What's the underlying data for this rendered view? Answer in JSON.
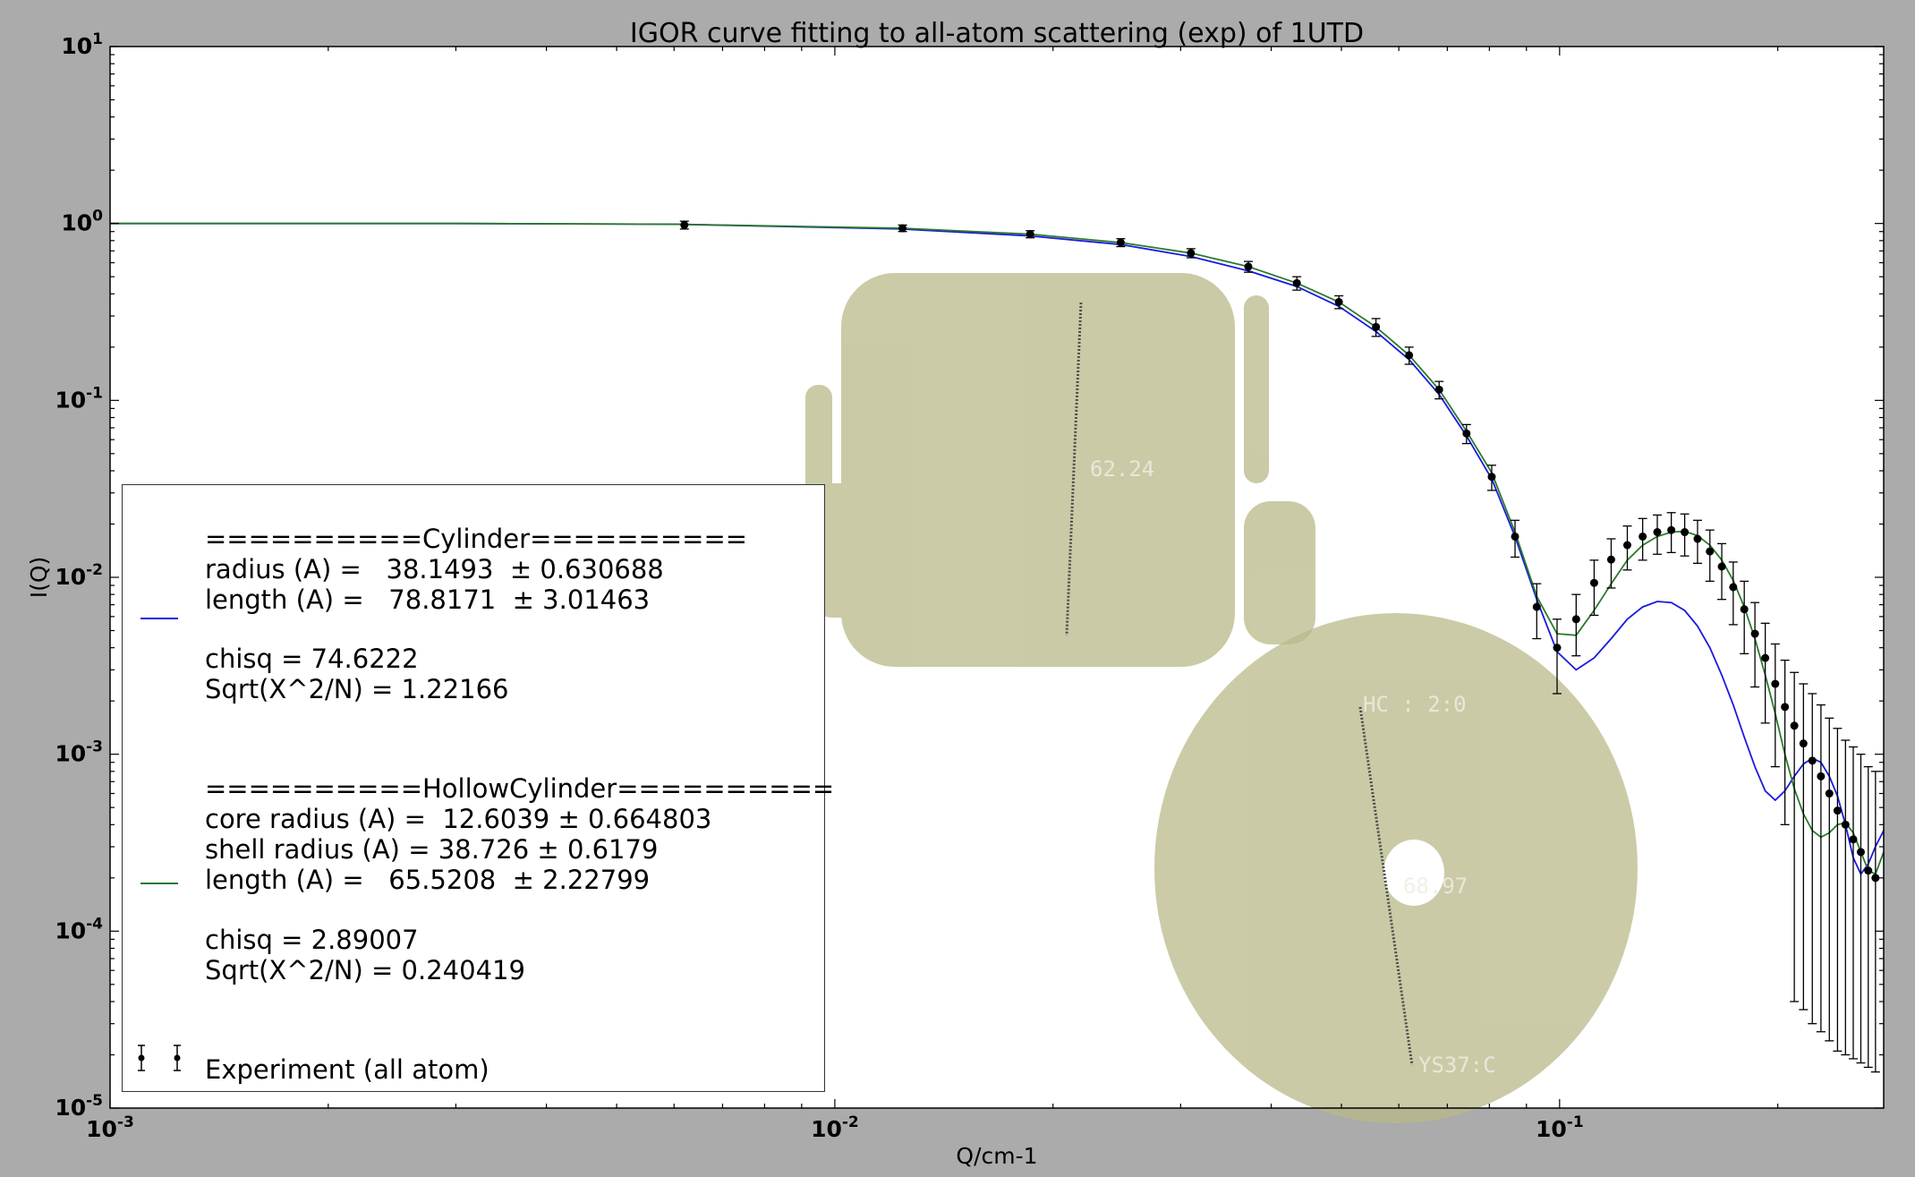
{
  "chart_data": {
    "type": "scatter",
    "title": "IGOR curve fitting to all-atom scattering (exp) of 1UTD",
    "xlabel": "Q/cm-1",
    "ylabel": "I(Q)",
    "xscale": "log",
    "yscale": "log",
    "xlim": [
      0.001,
      0.28
    ],
    "ylim": [
      1e-05,
      10
    ],
    "x_ticks": [
      {
        "base": "10",
        "exp": "-3"
      },
      {
        "base": "10",
        "exp": "-2"
      },
      {
        "base": "10",
        "exp": "-1"
      }
    ],
    "y_ticks": [
      {
        "base": "10",
        "exp": "1"
      },
      {
        "base": "10",
        "exp": "0"
      },
      {
        "base": "10",
        "exp": "-1"
      },
      {
        "base": "10",
        "exp": "-2"
      },
      {
        "base": "10",
        "exp": "-3"
      },
      {
        "base": "10",
        "exp": "-4"
      },
      {
        "base": "10",
        "exp": "-5"
      }
    ],
    "grid": false,
    "series": [
      {
        "name": "Experiment (all atom)",
        "kind": "errorbar",
        "color": "#000000",
        "x": [
          0.0062,
          0.0124,
          0.0186,
          0.0248,
          0.031,
          0.0372,
          0.0434,
          0.0496,
          0.0558,
          0.062,
          0.0682,
          0.0744,
          0.0806,
          0.0868,
          0.093,
          0.0992,
          0.1054,
          0.1116,
          0.1178,
          0.124,
          0.1302,
          0.1364,
          0.1426,
          0.1488,
          0.155,
          0.1612,
          0.1674,
          0.1736,
          0.1798,
          0.186,
          0.1922,
          0.1984,
          0.2046,
          0.2108,
          0.217,
          0.2232,
          0.2294,
          0.2356,
          0.2418,
          0.248,
          0.2542,
          0.2604,
          0.2666,
          0.2728
        ],
        "y": [
          0.98,
          0.94,
          0.87,
          0.78,
          0.68,
          0.57,
          0.46,
          0.36,
          0.26,
          0.18,
          0.115,
          0.065,
          0.037,
          0.017,
          0.0068,
          0.004,
          0.0058,
          0.0093,
          0.0126,
          0.0152,
          0.017,
          0.018,
          0.0185,
          0.018,
          0.0165,
          0.014,
          0.0115,
          0.0088,
          0.0066,
          0.0048,
          0.0035,
          0.0025,
          0.00185,
          0.00145,
          0.00115,
          0.00092,
          0.00075,
          0.0006,
          0.00048,
          0.0004,
          0.00033,
          0.00028,
          0.00022,
          0.0002
        ],
        "yerr_upper": [
          1.03,
          0.98,
          0.91,
          0.82,
          0.72,
          0.61,
          0.5,
          0.39,
          0.29,
          0.2,
          0.128,
          0.073,
          0.043,
          0.021,
          0.0092,
          0.0058,
          0.008,
          0.0125,
          0.0165,
          0.0195,
          0.0215,
          0.0225,
          0.0232,
          0.0228,
          0.021,
          0.0185,
          0.0155,
          0.0122,
          0.0095,
          0.0072,
          0.0055,
          0.0042,
          0.0034,
          0.0029,
          0.0025,
          0.0022,
          0.0019,
          0.0016,
          0.0014,
          0.0012,
          0.0011,
          0.001,
          0.00085,
          0.0008
        ],
        "yerr_lower": [
          0.93,
          0.9,
          0.83,
          0.74,
          0.64,
          0.53,
          0.42,
          0.33,
          0.23,
          0.16,
          0.102,
          0.057,
          0.031,
          0.013,
          0.0045,
          0.0022,
          0.0036,
          0.0061,
          0.0087,
          0.011,
          0.0125,
          0.0135,
          0.0138,
          0.0132,
          0.012,
          0.0095,
          0.0075,
          0.0054,
          0.0037,
          0.0024,
          0.0015,
          0.00085,
          0.0004,
          4e-05,
          3.6e-05,
          3e-05,
          2.7e-05,
          2.4e-05,
          2.1e-05,
          2e-05,
          1.9e-05,
          1.8e-05,
          1.7e-05,
          1.6e-05
        ]
      },
      {
        "name": "Cylinder",
        "kind": "line",
        "color": "#1a1adf",
        "x": [
          0.001,
          0.003,
          0.006,
          0.0124,
          0.0186,
          0.0248,
          0.031,
          0.0372,
          0.0434,
          0.0496,
          0.0558,
          0.062,
          0.0682,
          0.0744,
          0.0806,
          0.0868,
          0.093,
          0.0992,
          0.1054,
          0.1116,
          0.1178,
          0.124,
          0.1302,
          0.1364,
          0.1426,
          0.1488,
          0.155,
          0.1612,
          0.1674,
          0.1736,
          0.1798,
          0.186,
          0.1922,
          0.1984,
          0.2046,
          0.2108,
          0.217,
          0.2232,
          0.2294,
          0.2356,
          0.2418,
          0.248,
          0.2542,
          0.2604,
          0.2666,
          0.2728,
          0.28
        ],
        "y": [
          1.0,
          1.0,
          0.99,
          0.93,
          0.85,
          0.76,
          0.65,
          0.54,
          0.44,
          0.34,
          0.245,
          0.17,
          0.108,
          0.063,
          0.036,
          0.017,
          0.0075,
          0.0038,
          0.003,
          0.0035,
          0.0045,
          0.0058,
          0.0068,
          0.0073,
          0.0072,
          0.0065,
          0.0053,
          0.004,
          0.0028,
          0.0019,
          0.00125,
          0.00085,
          0.00062,
          0.00055,
          0.00062,
          0.00075,
          0.00088,
          0.00095,
          0.0009,
          0.00075,
          0.00058,
          0.0004,
          0.00026,
          0.00021,
          0.00024,
          0.0003,
          0.00037
        ]
      },
      {
        "name": "HollowCylinder",
        "kind": "line",
        "color": "#2b7a2b",
        "x": [
          0.001,
          0.003,
          0.006,
          0.0124,
          0.0186,
          0.0248,
          0.031,
          0.0372,
          0.0434,
          0.0496,
          0.0558,
          0.062,
          0.0682,
          0.0744,
          0.0806,
          0.0868,
          0.093,
          0.0992,
          0.1054,
          0.1116,
          0.1178,
          0.124,
          0.1302,
          0.1364,
          0.1426,
          0.1488,
          0.155,
          0.1612,
          0.1674,
          0.1736,
          0.1798,
          0.186,
          0.1922,
          0.1984,
          0.2046,
          0.2108,
          0.217,
          0.2232,
          0.2294,
          0.2356,
          0.2418,
          0.248,
          0.2542,
          0.2604,
          0.2666,
          0.2728,
          0.28
        ],
        "y": [
          1.0,
          1.0,
          0.99,
          0.94,
          0.87,
          0.78,
          0.68,
          0.57,
          0.46,
          0.36,
          0.26,
          0.18,
          0.115,
          0.067,
          0.039,
          0.018,
          0.0078,
          0.0048,
          0.0047,
          0.0065,
          0.0092,
          0.0125,
          0.0152,
          0.017,
          0.018,
          0.0182,
          0.0172,
          0.0152,
          0.0125,
          0.0096,
          0.0068,
          0.0045,
          0.0028,
          0.0017,
          0.001,
          0.00064,
          0.00046,
          0.00037,
          0.00034,
          0.00036,
          0.0004,
          0.00041,
          0.00036,
          0.00028,
          0.00022,
          0.00021,
          0.00028
        ]
      }
    ]
  },
  "legend": {
    "cylinder_header": "==========Cylinder==========",
    "cylinder_radius": "radius (A) =   38.1493  ± 0.630688",
    "cylinder_length": "length (A) =   78.8171  ± 3.01463",
    "cylinder_chisq": "chisq = 74.6222",
    "cylinder_sqrt": "Sqrt(X^2/N) = 1.22166",
    "hollow_header": "==========HollowCylinder==========",
    "hollow_core": "core radius (A) =  12.6039 ± 0.664803",
    "hollow_shell": "shell radius (A) = 38.726 ± 0.6179",
    "hollow_length": "length (A) =   65.5208  ± 2.22799",
    "hollow_chisq": "chisq = 2.89007",
    "hollow_sqrt": "Sqrt(X^2/N) = 0.240419",
    "experiment_label": "Experiment (all atom)"
  },
  "annotations": {
    "side_view_distance": "62.24",
    "top_view_distance": "68.97",
    "top_view_label_1": "HC  :  2:0",
    "top_view_label_2": "YS37:C"
  }
}
